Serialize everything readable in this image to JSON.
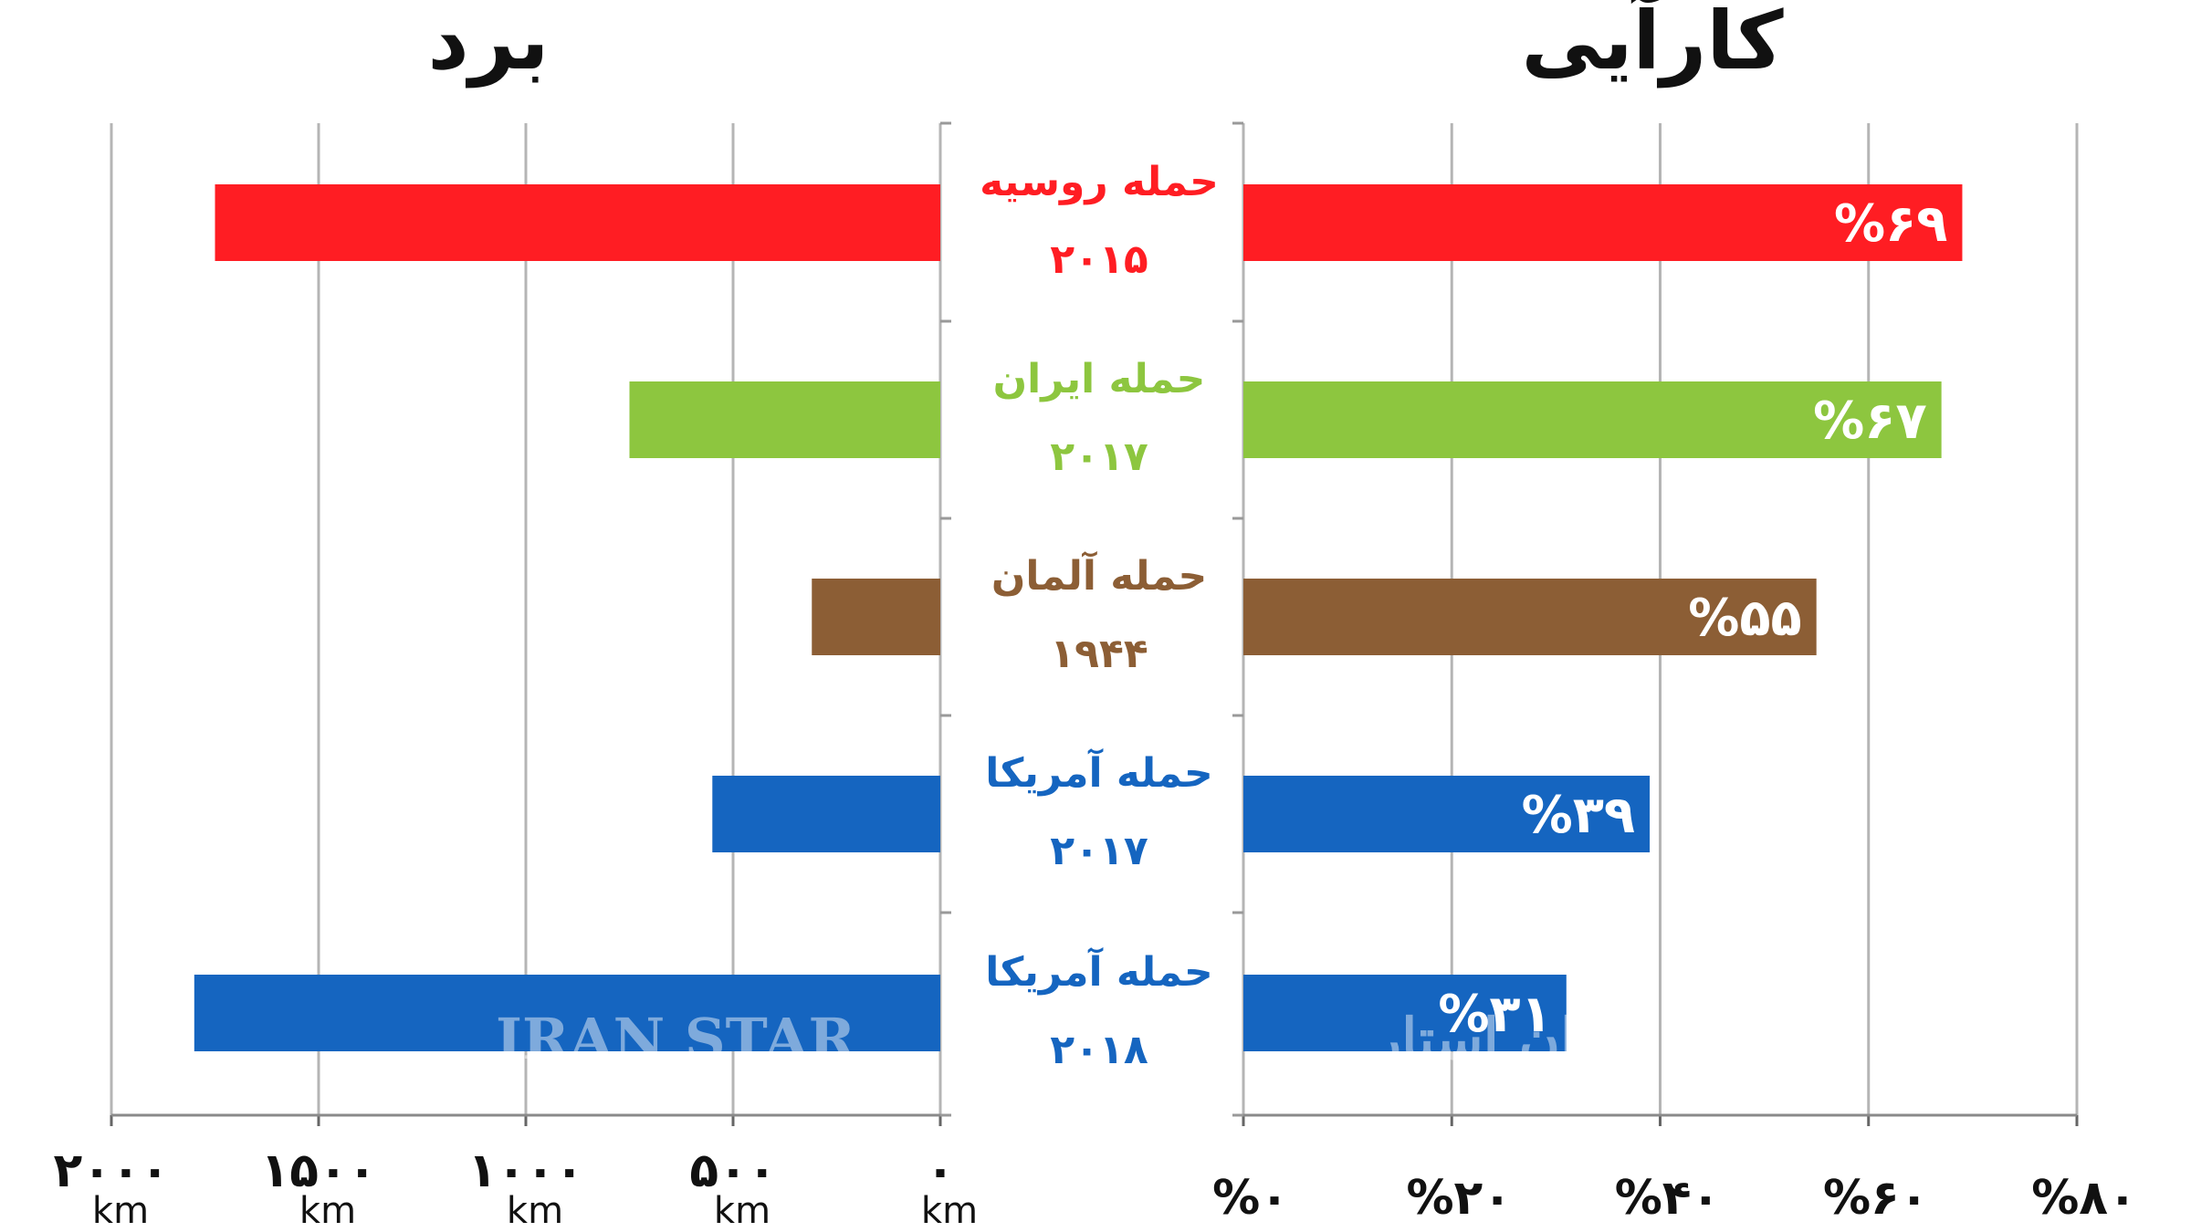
{
  "chart_data": [
    {
      "type": "bar",
      "orientation": "horizontal",
      "title": "برد",
      "unit": "km",
      "xlim": [
        0,
        2000
      ],
      "direction": "right-to-left",
      "ticks": [
        "۰",
        "۵۰۰",
        "۱۰۰۰",
        "۱۵۰۰",
        "۲۰۰۰"
      ],
      "tick_values": [
        0,
        500,
        1000,
        1500,
        2000
      ],
      "grid": true,
      "values": [
        1750,
        750,
        310,
        550,
        1800
      ]
    },
    {
      "type": "bar",
      "orientation": "horizontal",
      "title": "کارآیی",
      "xlim": [
        0,
        80
      ],
      "ticks": [
        "%۰",
        "%۲۰",
        "%۴۰",
        "%۶۰",
        "%۸۰"
      ],
      "tick_values": [
        0,
        20,
        40,
        60,
        80
      ],
      "grid": true,
      "values": [
        69,
        67,
        55,
        39,
        31
      ],
      "value_labels": [
        "%۶۹",
        "%۶۷",
        "%۵۵",
        "%۳۹",
        "%۳۱"
      ]
    }
  ],
  "categories": [
    {
      "name": "حمله روسیه",
      "year": "۲۰۱۵",
      "color": "#ff1d23"
    },
    {
      "name": "حمله ایران",
      "year": "۲۰۱۷",
      "color": "#8dc63f"
    },
    {
      "name": "حمله آلمان",
      "year": "۱۹۴۴",
      "color": "#8c5e35"
    },
    {
      "name": "حمله آمریکا",
      "year": "۲۰۱۷",
      "color": "#1565c0"
    },
    {
      "name": "حمله آمریکا",
      "year": "۲۰۱۸",
      "color": "#1565c0"
    }
  ],
  "watermark": {
    "latin": "IRAN STAR",
    "persian": "ایران استار"
  }
}
